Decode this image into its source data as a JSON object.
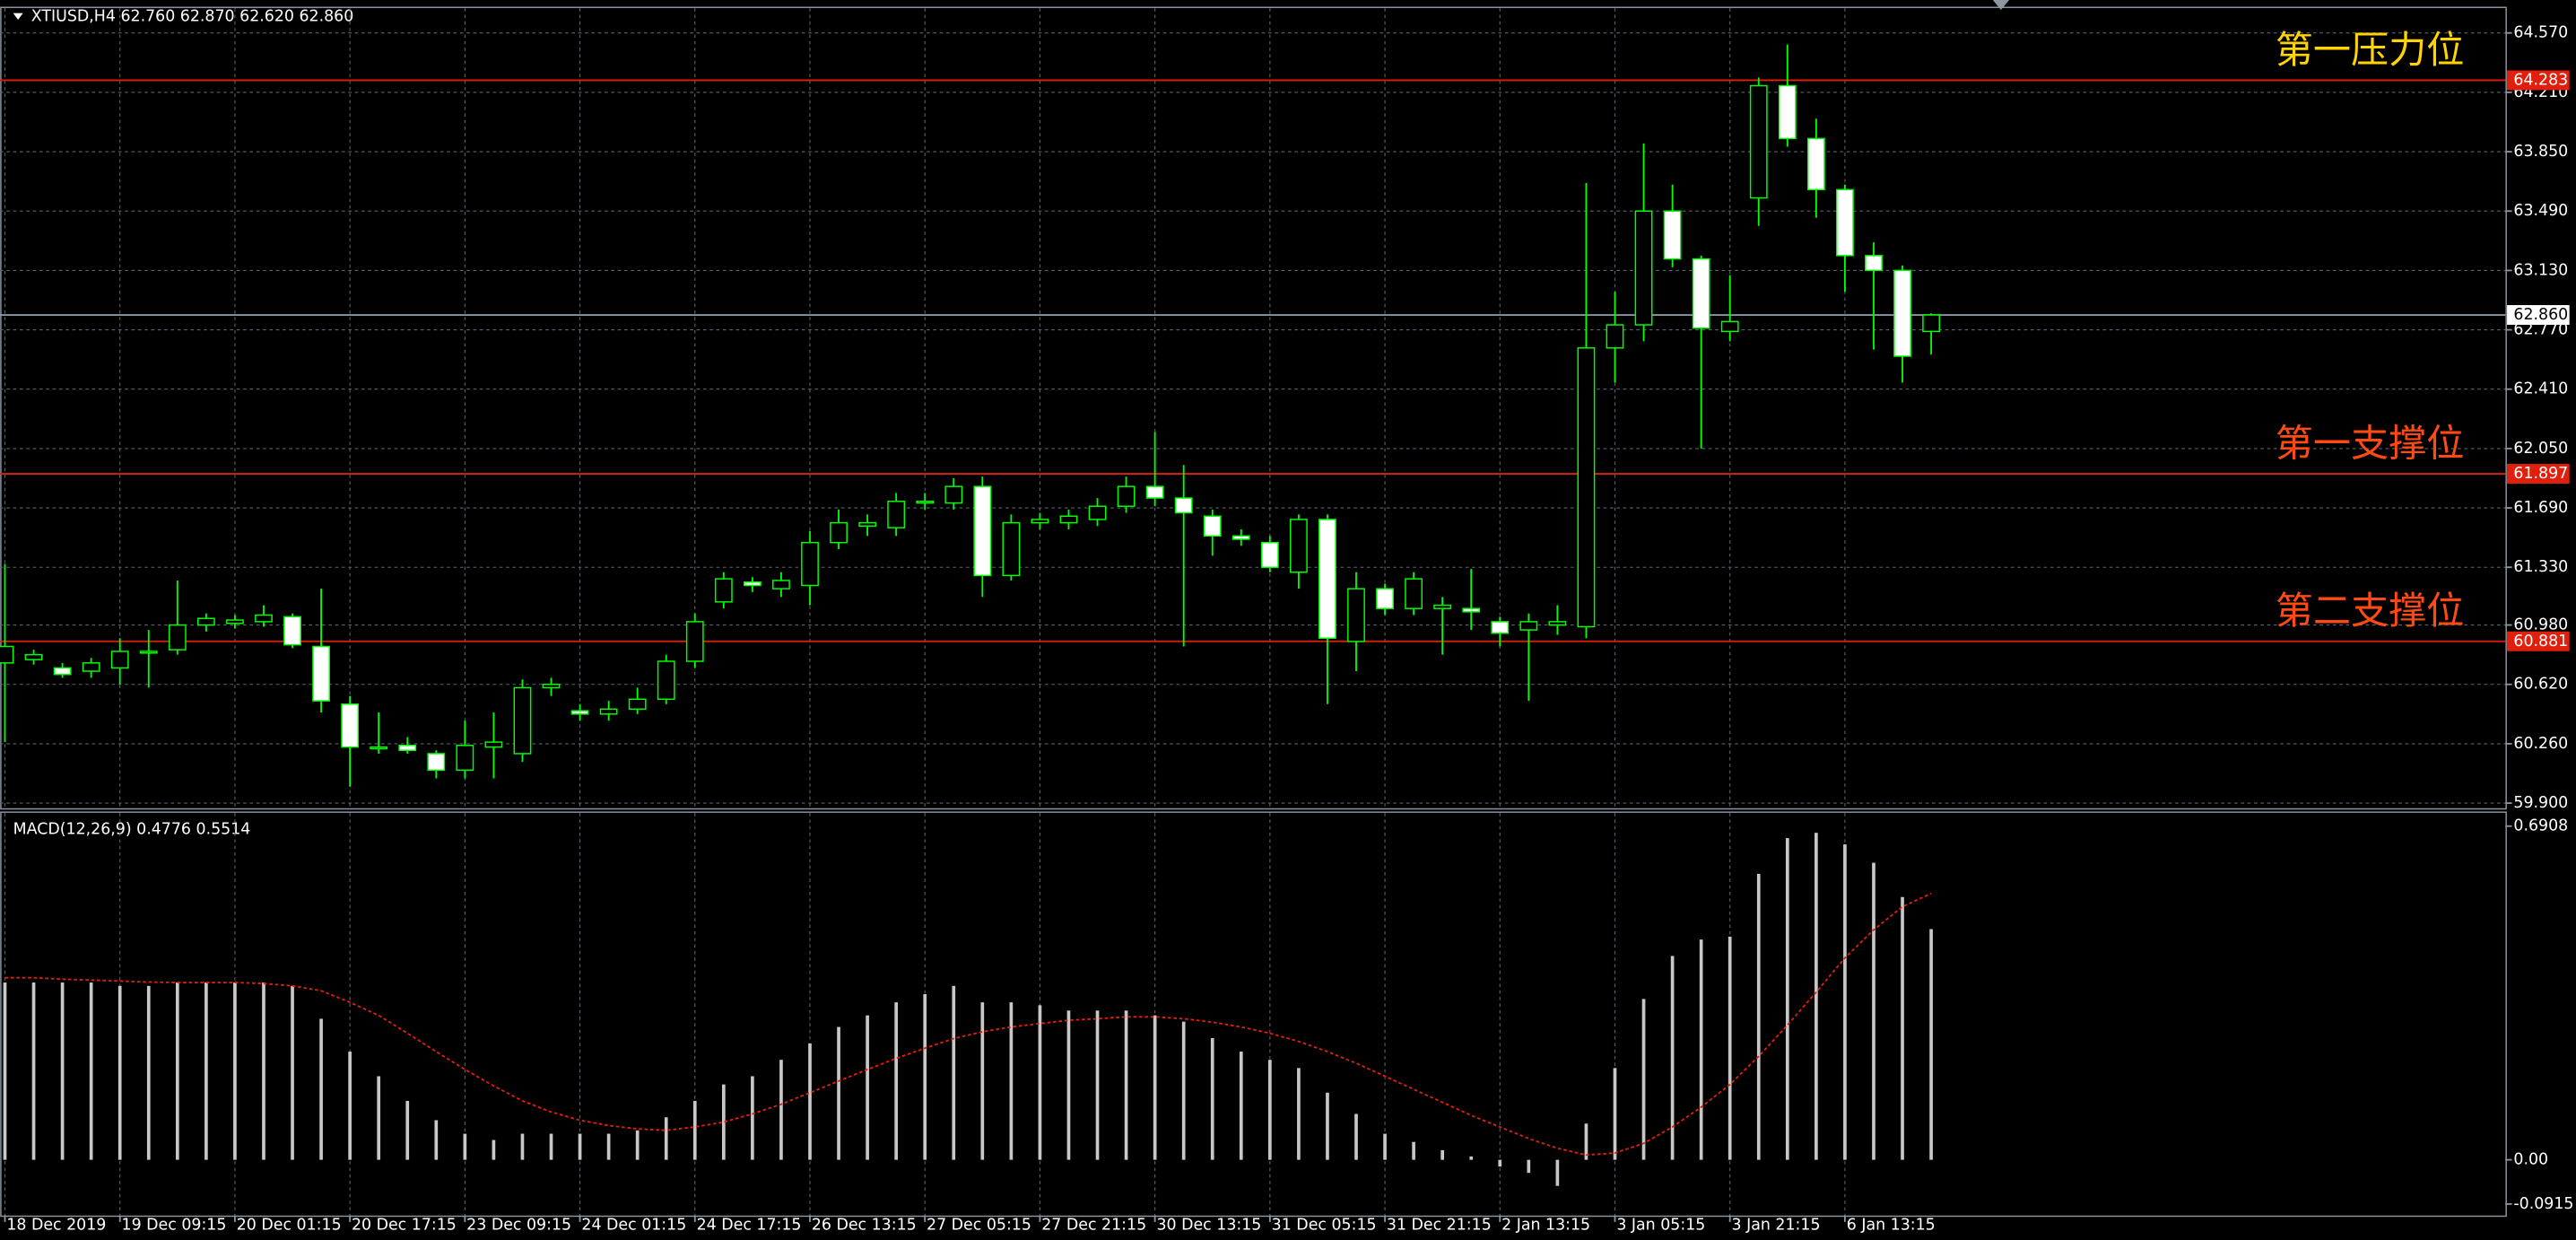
{
  "chart_data": [
    {
      "type": "candlestick",
      "title": "XTIUSD,H4 62.760 62.870 62.620 62.860",
      "categories": [
        "18 Dec 2019",
        null,
        null,
        null,
        "19 Dec 09:15",
        null,
        null,
        null,
        "20 Dec 01:15",
        null,
        null,
        null,
        "20 Dec 17:15",
        null,
        null,
        null,
        "23 Dec 09:15",
        null,
        null,
        null,
        "24 Dec 01:15",
        null,
        null,
        null,
        "24 Dec 17:15",
        null,
        null,
        null,
        "26 Dec 13:15",
        null,
        null,
        null,
        "27 Dec 05:15",
        null,
        null,
        null,
        "27 Dec 21:15",
        null,
        null,
        null,
        "30 Dec 13:15",
        null,
        null,
        null,
        "31 Dec 05:15",
        null,
        null,
        null,
        "31 Dec 21:15",
        null,
        null,
        null,
        "2 Jan 13:15",
        null,
        null,
        null,
        "3 Jan 05:15",
        null,
        null,
        null,
        "3 Jan 21:15",
        null,
        null,
        null,
        "6 Jan 13:15",
        null,
        null,
        null
      ],
      "open": [
        60.75,
        60.77,
        60.72,
        60.7,
        60.72,
        60.82,
        60.83,
        60.98,
        60.99,
        61.0,
        61.03,
        60.85,
        60.5,
        60.24,
        60.25,
        60.2,
        60.1,
        60.24,
        60.2,
        60.6,
        60.46,
        60.44,
        60.47,
        60.53,
        60.76,
        61.12,
        61.24,
        61.2,
        61.22,
        61.48,
        61.58,
        61.57,
        61.72,
        61.72,
        61.82,
        61.28,
        61.6,
        61.6,
        61.62,
        61.7,
        61.82,
        61.75,
        61.64,
        61.52,
        61.48,
        61.3,
        61.62,
        60.88,
        61.2,
        61.08,
        61.08,
        61.08,
        61.0,
        60.95,
        60.98,
        60.97,
        62.66,
        62.8,
        63.49,
        63.2,
        62.76,
        63.57,
        64.25,
        63.93,
        63.62,
        63.22,
        63.13,
        62.76
      ],
      "high": [
        61.35,
        60.83,
        60.75,
        60.78,
        60.9,
        60.95,
        61.25,
        61.05,
        61.04,
        61.1,
        61.05,
        61.2,
        60.55,
        60.45,
        60.3,
        60.22,
        60.4,
        60.45,
        60.65,
        60.66,
        60.5,
        60.52,
        60.6,
        60.8,
        61.05,
        61.3,
        61.27,
        61.3,
        61.55,
        61.68,
        61.65,
        61.78,
        61.78,
        61.87,
        61.88,
        61.65,
        61.66,
        61.68,
        61.75,
        61.88,
        62.15,
        61.95,
        61.68,
        61.56,
        61.52,
        61.65,
        61.65,
        61.3,
        61.23,
        61.3,
        61.15,
        61.32,
        61.03,
        61.05,
        61.1,
        63.66,
        63.0,
        63.9,
        63.65,
        63.22,
        63.1,
        64.3,
        64.5,
        64.05,
        63.65,
        63.3,
        63.16,
        62.87
      ],
      "low": [
        60.27,
        60.74,
        60.66,
        60.66,
        60.62,
        60.6,
        60.8,
        60.94,
        60.96,
        60.97,
        60.84,
        60.45,
        60.0,
        60.2,
        60.2,
        60.05,
        60.05,
        60.05,
        60.15,
        60.55,
        60.4,
        60.4,
        60.44,
        60.5,
        60.72,
        61.08,
        61.18,
        61.15,
        61.1,
        61.44,
        61.52,
        61.52,
        61.68,
        61.68,
        61.15,
        61.25,
        61.56,
        61.56,
        61.58,
        61.66,
        61.7,
        60.85,
        61.4,
        61.46,
        61.3,
        61.2,
        60.5,
        60.7,
        61.04,
        61.04,
        60.8,
        60.95,
        60.85,
        60.52,
        60.92,
        60.9,
        62.45,
        62.7,
        63.15,
        62.05,
        62.7,
        63.4,
        63.88,
        63.45,
        63.0,
        62.65,
        62.45,
        62.62
      ],
      "close": [
        60.85,
        60.8,
        60.68,
        60.75,
        60.82,
        60.82,
        60.98,
        61.02,
        61.01,
        61.04,
        60.86,
        60.52,
        60.24,
        60.24,
        60.22,
        60.1,
        60.25,
        60.27,
        60.6,
        60.62,
        60.44,
        60.47,
        60.53,
        60.76,
        61.0,
        61.26,
        61.22,
        61.25,
        61.48,
        61.6,
        61.6,
        61.73,
        61.73,
        61.82,
        61.28,
        61.6,
        61.62,
        61.64,
        61.7,
        61.82,
        61.75,
        61.66,
        61.52,
        61.5,
        61.33,
        61.62,
        60.9,
        61.2,
        61.08,
        61.26,
        61.1,
        61.06,
        60.93,
        61.0,
        61.0,
        62.66,
        62.8,
        63.49,
        63.2,
        62.78,
        62.82,
        64.25,
        63.93,
        63.62,
        63.22,
        63.13,
        62.61,
        62.86
      ],
      "up_color": "#000000",
      "down_color": "#ffffff",
      "wick_color": "#00ff00",
      "ylim": [
        59.87,
        64.72
      ],
      "yticks": [
        {
          "value": 59.9,
          "label": "59.900"
        },
        {
          "value": 60.26,
          "label": "60.260"
        },
        {
          "value": 60.62,
          "label": "60.620"
        },
        {
          "value": 60.98,
          "label": "60.980"
        },
        {
          "value": 61.33,
          "label": "61.330"
        },
        {
          "value": 61.69,
          "label": "61.690"
        },
        {
          "value": 62.05,
          "label": "62.050"
        },
        {
          "value": 62.41,
          "label": "62.410"
        },
        {
          "value": 62.77,
          "label": "62.770"
        },
        {
          "value": 63.13,
          "label": "63.130"
        },
        {
          "value": 63.49,
          "label": "63.490"
        },
        {
          "value": 63.85,
          "label": "63.850"
        },
        {
          "value": 64.21,
          "label": "64.210"
        },
        {
          "value": 64.57,
          "label": "64.570"
        }
      ],
      "grid": true,
      "hlines": [
        {
          "value": 64.283,
          "color": "#e0200c",
          "annotation": "第一压力位",
          "annotation_color": "#ffd400"
        },
        {
          "value": 62.86,
          "label": "62.860",
          "color": "#8c96a0"
        },
        {
          "value": 61.897,
          "color": "#e0200c",
          "annotation": "第一支撑位",
          "annotation_color": "#ff4a14"
        },
        {
          "value": 60.881,
          "color": "#e0200c",
          "annotation": "第二支撑位",
          "annotation_color": "#ff4a14"
        }
      ]
    },
    {
      "type": "macd",
      "title": "MACD(12,26,9) 0.4776 0.5514",
      "histogram": {
        "color": "#c8c8c8",
        "values": [
          0.367,
          0.367,
          0.367,
          0.367,
          0.36,
          0.36,
          0.367,
          0.367,
          0.367,
          0.367,
          0.36,
          0.292,
          0.224,
          0.173,
          0.122,
          0.082,
          0.054,
          0.041,
          0.054,
          0.054,
          0.054,
          0.054,
          0.061,
          0.088,
          0.122,
          0.156,
          0.173,
          0.207,
          0.241,
          0.275,
          0.299,
          0.326,
          0.343,
          0.36,
          0.326,
          0.326,
          0.32,
          0.309,
          0.309,
          0.309,
          0.299,
          0.286,
          0.252,
          0.224,
          0.207,
          0.19,
          0.139,
          0.095,
          0.054,
          0.037,
          0.02,
          0.007,
          -0.014,
          -0.027,
          -0.054,
          0.075,
          0.19,
          0.333,
          0.422,
          0.456,
          0.462,
          0.592,
          0.666,
          0.677,
          0.653,
          0.615,
          0.544,
          0.4776
        ]
      },
      "signal": {
        "color": "#e0200c",
        "values": [
          0.377,
          0.377,
          0.374,
          0.372,
          0.37,
          0.368,
          0.367,
          0.367,
          0.367,
          0.365,
          0.36,
          0.35,
          0.326,
          0.299,
          0.262,
          0.224,
          0.187,
          0.153,
          0.122,
          0.099,
          0.082,
          0.071,
          0.064,
          0.061,
          0.068,
          0.078,
          0.095,
          0.115,
          0.139,
          0.163,
          0.187,
          0.21,
          0.231,
          0.251,
          0.265,
          0.275,
          0.282,
          0.289,
          0.292,
          0.296,
          0.296,
          0.292,
          0.285,
          0.275,
          0.262,
          0.245,
          0.224,
          0.2,
          0.173,
          0.146,
          0.119,
          0.092,
          0.068,
          0.044,
          0.024,
          0.01,
          0.014,
          0.034,
          0.068,
          0.109,
          0.156,
          0.214,
          0.279,
          0.347,
          0.418,
          0.476,
          0.524,
          0.5514
        ]
      },
      "ylim": [
        -0.115,
        0.718
      ],
      "yticks": [
        0.6908,
        {
          "value": 0,
          "label": "0.00"
        },
        -0.0915
      ]
    }
  ]
}
